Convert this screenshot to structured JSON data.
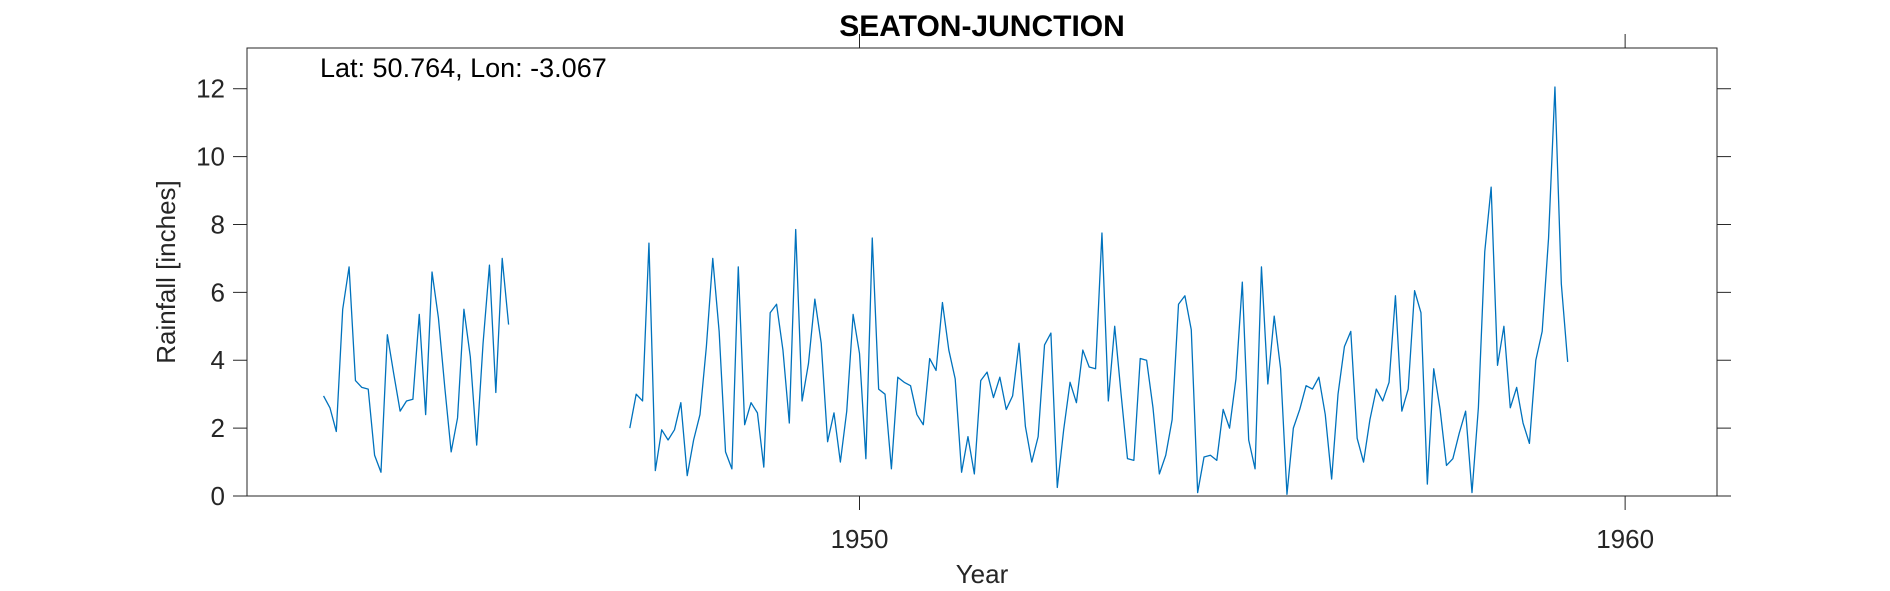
{
  "chart_data": {
    "type": "line",
    "title": "SEATON-JUNCTION",
    "annotation": "Lat: 50.764, Lon: -3.067",
    "xlabel": "Year",
    "ylabel": "Rainfall [inches]",
    "xlim": [
      1942.0,
      1961.2
    ],
    "ylim": [
      0,
      13.2
    ],
    "xticks": [
      1950,
      1960
    ],
    "xtick_labels": [
      "1950",
      "1960"
    ],
    "yticks": [
      0,
      2,
      4,
      6,
      8,
      10,
      12
    ],
    "ytick_labels": [
      "0",
      "2",
      "4",
      "6",
      "8",
      "10",
      "12"
    ],
    "grid": false,
    "line_color": "#0072BD",
    "series": [
      {
        "start": "1943-01",
        "values": [
          2.95,
          2.6,
          1.9,
          5.5,
          6.75,
          3.4,
          3.2,
          3.15,
          1.2,
          0.7,
          4.75,
          3.6,
          2.5,
          2.8,
          2.85,
          5.35,
          2.4,
          6.6,
          5.25,
          3.2,
          1.3,
          2.3,
          5.5,
          4.1,
          1.5,
          4.5,
          6.8,
          3.05,
          7.0,
          5.05,
          null,
          null,
          null,
          null,
          null,
          null,
          null,
          null,
          null,
          null,
          null,
          null,
          null,
          null,
          null,
          null,
          null,
          null,
          2.0,
          3.0,
          2.8,
          7.45,
          0.75,
          1.95,
          1.65,
          1.95,
          2.75,
          0.6,
          1.65,
          2.4,
          4.4,
          7.0,
          4.85,
          1.3,
          0.8,
          6.75,
          2.1,
          2.75,
          2.45,
          0.85,
          5.4,
          5.65,
          4.3,
          2.15,
          7.85,
          2.8,
          3.9,
          5.8,
          4.5,
          1.6,
          2.45,
          1.0,
          2.5,
          5.35,
          4.2,
          1.1,
          7.6,
          3.15,
          3.0,
          0.8,
          3.5,
          3.35,
          3.25,
          2.4,
          2.1,
          4.05,
          3.7,
          5.7,
          4.3,
          3.45,
          0.7,
          1.75,
          0.65,
          3.4,
          3.65,
          2.9,
          3.5,
          2.55,
          2.95,
          4.5,
          2.05,
          1.0,
          1.75,
          4.45,
          4.8,
          0.25,
          1.95,
          3.35,
          2.75,
          4.3,
          3.8,
          3.75,
          7.75,
          2.8,
          5.0,
          3.0,
          1.1,
          1.05,
          4.05,
          4.0,
          2.6,
          0.65,
          1.2,
          2.25,
          5.65,
          5.9,
          4.9,
          0.1,
          1.15,
          1.2,
          1.05,
          2.55,
          2.0,
          3.45,
          6.3,
          1.65,
          0.8,
          6.75,
          3.3,
          5.3,
          3.75,
          0.05,
          2.0,
          2.55,
          3.25,
          3.15,
          3.5,
          2.4,
          0.5,
          3.0,
          4.4,
          4.85,
          1.7,
          1.0,
          2.25,
          3.15,
          2.8,
          3.35,
          5.9,
          2.5,
          3.15,
          6.05,
          5.4,
          0.35,
          3.75,
          2.55,
          0.9,
          1.1,
          1.85,
          2.5,
          0.1,
          2.6,
          7.2,
          9.1,
          3.85,
          5.0,
          2.6,
          3.2,
          2.15,
          1.55,
          4.0,
          4.85,
          7.6,
          12.05,
          6.25,
          3.95
        ]
      }
    ]
  }
}
